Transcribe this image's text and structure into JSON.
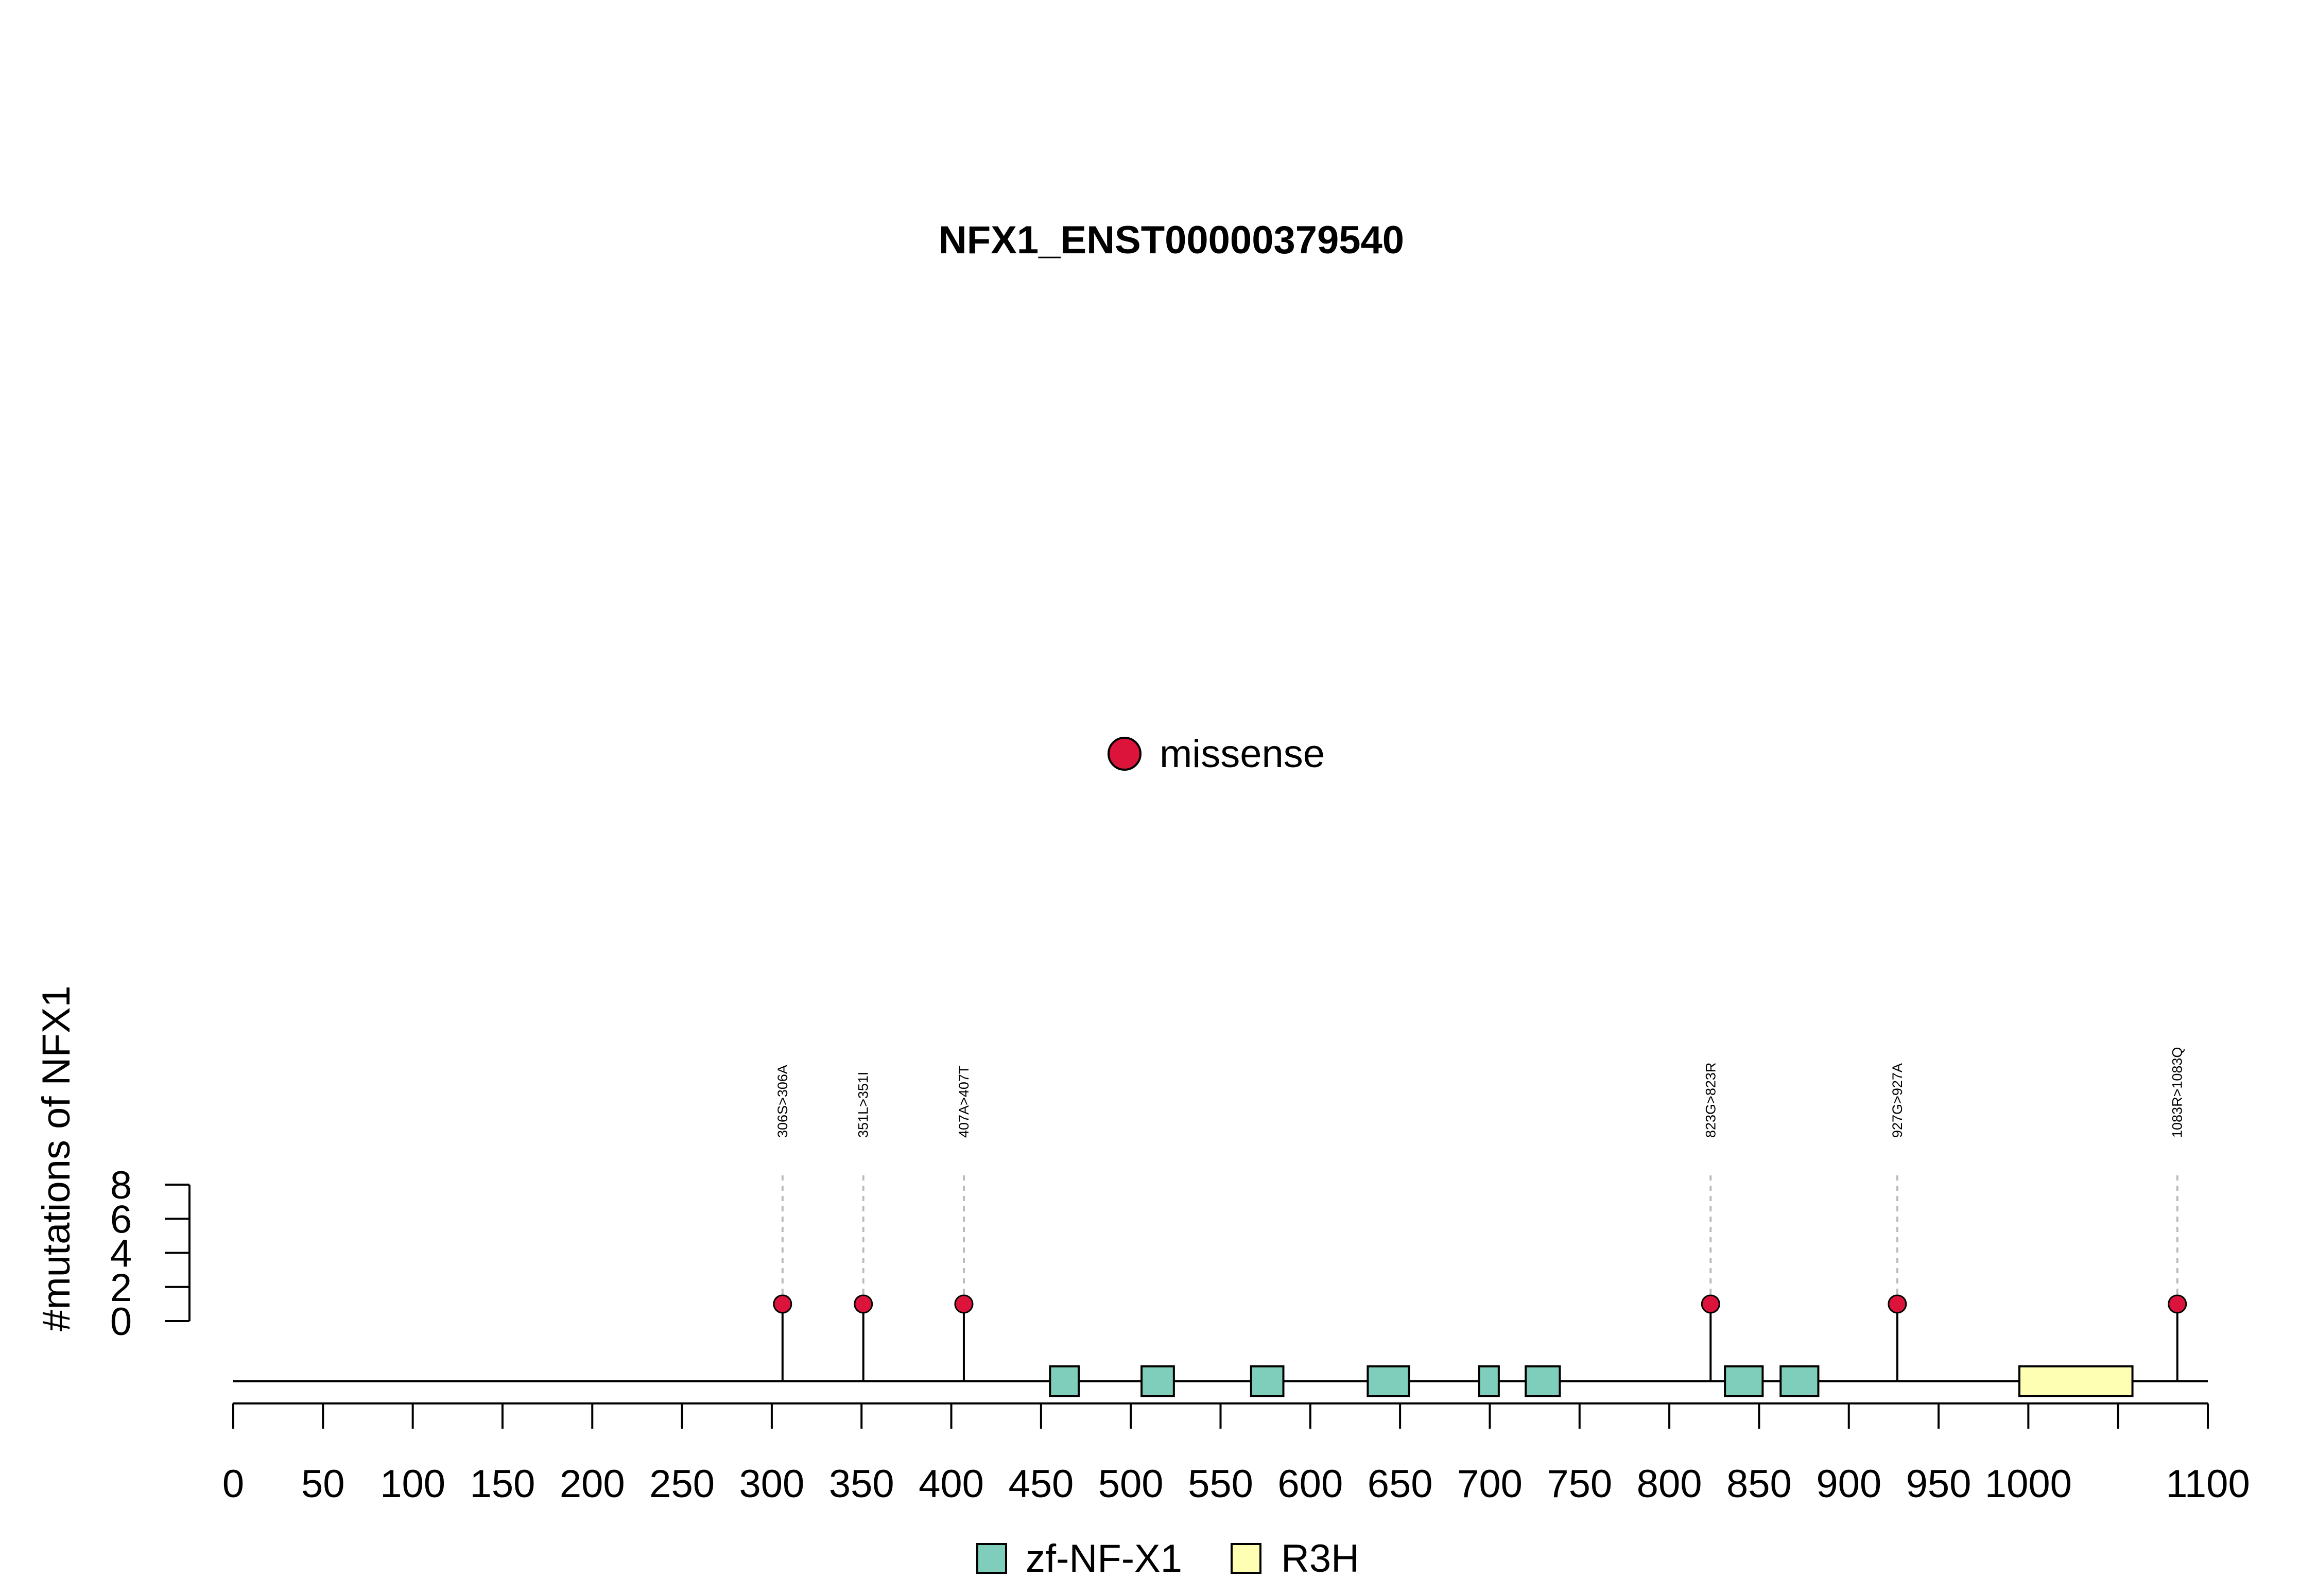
{
  "chart_data": {
    "type": "lollipop",
    "title": "NFX1_ENST00000379540",
    "ylabel": "#mutations of NFX1",
    "ylim": [
      0,
      8
    ],
    "y_ticks": [
      "0",
      "2",
      "4",
      "6",
      "8"
    ],
    "xlim": [
      0,
      1100
    ],
    "x_ticks": [
      "0",
      "50",
      "100",
      "150",
      "200",
      "250",
      "300",
      "350",
      "400",
      "450",
      "500",
      "550",
      "600",
      "650",
      "700",
      "750",
      "800",
      "850",
      "900",
      "950",
      "1000",
      "1100"
    ],
    "x_minor_ticks": [
      1050
    ],
    "protein_length": 1100,
    "mutation_legend": [
      {
        "label": "missense",
        "color": "#DC143C"
      }
    ],
    "mutations": [
      {
        "position": 306,
        "label": "306S>306A",
        "count": 1,
        "type": "missense"
      },
      {
        "position": 351,
        "label": "351L>351I",
        "count": 1,
        "type": "missense"
      },
      {
        "position": 407,
        "label": "407A>407T",
        "count": 1,
        "type": "missense"
      },
      {
        "position": 823,
        "label": "823G>823R",
        "count": 1,
        "type": "missense"
      },
      {
        "position": 927,
        "label": "927G>927A",
        "count": 1,
        "type": "missense"
      },
      {
        "position": 1083,
        "label": "1083R>1083Q",
        "count": 1,
        "type": "missense"
      }
    ],
    "domain_legend": [
      {
        "label": "zf-NF-X1",
        "color": "#7FCDBB"
      },
      {
        "label": "R3H",
        "color": "#FFFFB3"
      }
    ],
    "domains": [
      {
        "name": "zf-NF-X1",
        "start": 455,
        "end": 471
      },
      {
        "name": "zf-NF-X1",
        "start": 506,
        "end": 524
      },
      {
        "name": "zf-NF-X1",
        "start": 567,
        "end": 585
      },
      {
        "name": "zf-NF-X1",
        "start": 632,
        "end": 655
      },
      {
        "name": "zf-NF-X1",
        "start": 694,
        "end": 705
      },
      {
        "name": "zf-NF-X1",
        "start": 720,
        "end": 739
      },
      {
        "name": "zf-NF-X1",
        "start": 831,
        "end": 852
      },
      {
        "name": "zf-NF-X1",
        "start": 862,
        "end": 883
      },
      {
        "name": "R3H",
        "start": 995,
        "end": 1058
      }
    ]
  }
}
